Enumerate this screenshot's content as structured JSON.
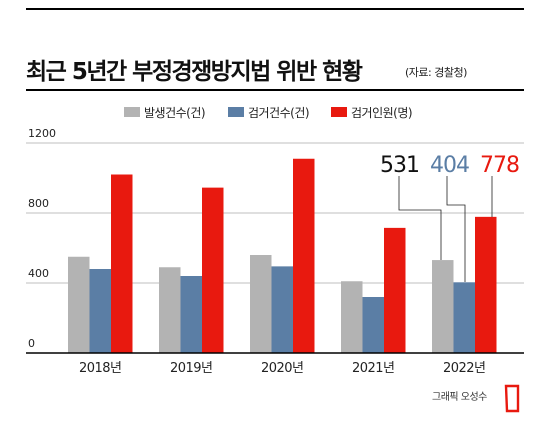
{
  "header": {
    "title": "최근 5년간 부정경쟁방지법 위반 현황",
    "source": "(자료: 경찰청)"
  },
  "footer": {
    "credit": "그래픽 오성수"
  },
  "colors": {
    "accent": "#e8190f",
    "series": [
      "#b3b3b3",
      "#5b7ea5",
      "#e8190f"
    ]
  },
  "chart_data": {
    "type": "bar",
    "categories": [
      "2018년",
      "2019년",
      "2020년",
      "2021년",
      "2022년"
    ],
    "series": [
      {
        "name": "발생건수(건)",
        "values": [
          550,
          490,
          560,
          410,
          531
        ]
      },
      {
        "name": "검거건수(건)",
        "values": [
          480,
          440,
          495,
          320,
          404
        ]
      },
      {
        "name": "검거인원(명)",
        "values": [
          1020,
          945,
          1110,
          715,
          778
        ]
      }
    ],
    "ylim": [
      0,
      1200
    ],
    "yticks": [
      "0",
      "400",
      "800",
      "1200"
    ],
    "grid": true,
    "legend": "top",
    "callouts": [
      "531",
      "404",
      "778"
    ]
  }
}
